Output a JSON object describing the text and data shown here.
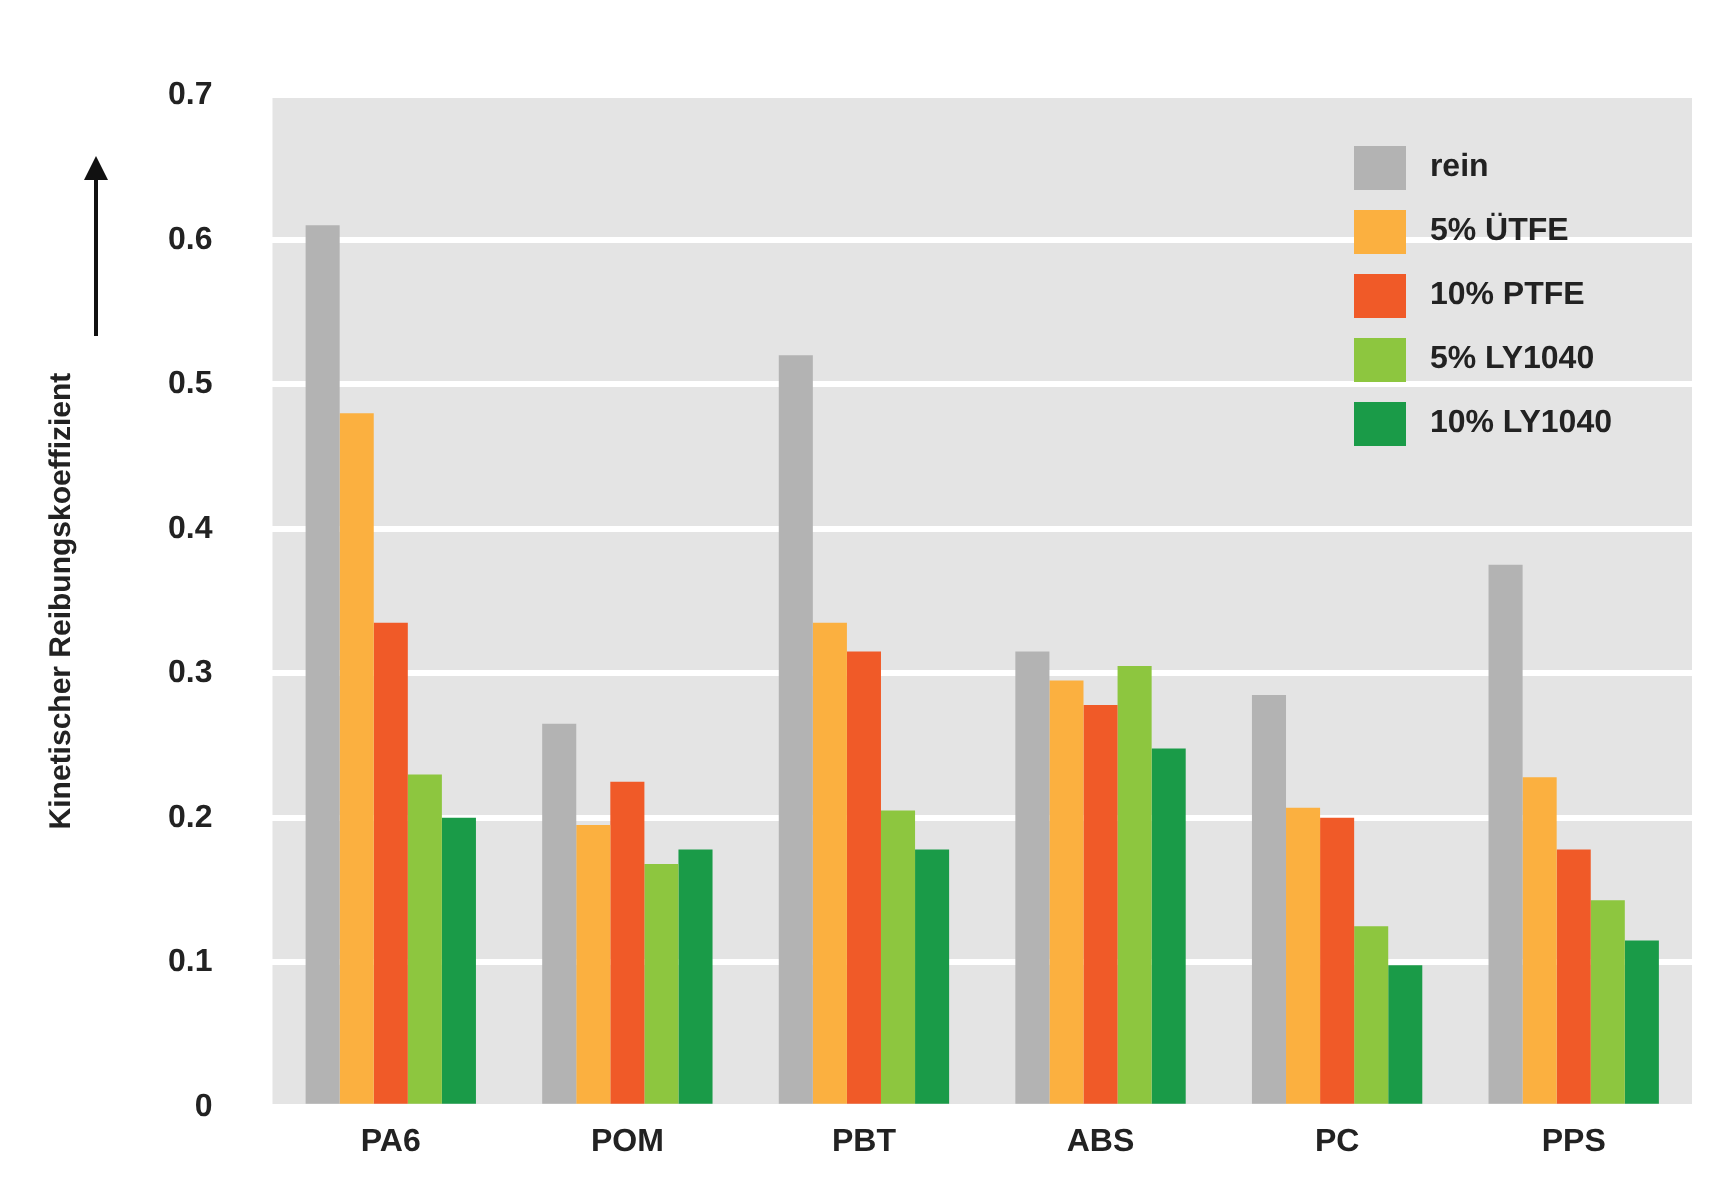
{
  "chart_data": {
    "type": "bar",
    "ylabel": "Kinetischer Reibungskoeffizient",
    "categories": [
      "PA6",
      "POM",
      "PBT",
      "ABS",
      "PC",
      "PPS"
    ],
    "series": [
      {
        "name": "rein",
        "color": "#b3b3b3",
        "values": [
          0.61,
          0.265,
          0.52,
          0.315,
          0.285,
          0.375
        ]
      },
      {
        "name": "5% ÜTFE",
        "color": "#fbb040",
        "values": [
          0.48,
          0.195,
          0.335,
          0.295,
          0.207,
          0.228
        ]
      },
      {
        "name": "10% PTFE",
        "color": "#f05a28",
        "values": [
          0.335,
          0.225,
          0.315,
          0.278,
          0.2,
          0.178
        ]
      },
      {
        "name": "5% LY1040",
        "color": "#8dc63f",
        "values": [
          0.23,
          0.168,
          0.205,
          0.305,
          0.125,
          0.143
        ]
      },
      {
        "name": "10% LY1040",
        "color": "#1a9b48",
        "values": [
          0.2,
          0.178,
          0.178,
          0.248,
          0.098,
          0.115
        ]
      }
    ],
    "ylim": [
      0,
      0.7
    ],
    "yticks": [
      0,
      0.1,
      0.2,
      0.3,
      0.4,
      0.5,
      0.6,
      0.7
    ],
    "grid": "y",
    "legend": "top right"
  }
}
